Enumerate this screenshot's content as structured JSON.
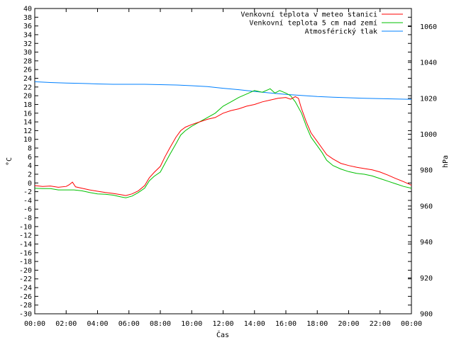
{
  "chart_data": {
    "type": "line",
    "xlabel": "Čas",
    "ylabel_left": "°C",
    "ylabel_right": "hPa",
    "xlim": [
      0,
      24
    ],
    "ylim_left": [
      -30,
      40
    ],
    "ylim_right": [
      900,
      1070
    ],
    "x_ticks": [
      "00:00",
      "02:00",
      "04:00",
      "06:00",
      "08:00",
      "10:00",
      "12:00",
      "14:00",
      "16:00",
      "18:00",
      "20:00",
      "22:00",
      "00:00"
    ],
    "y_ticks_left": [
      40,
      38,
      36,
      34,
      32,
      30,
      28,
      26,
      24,
      22,
      20,
      18,
      16,
      14,
      12,
      10,
      8,
      6,
      4,
      2,
      0,
      -2,
      -4,
      -6,
      -8,
      -10,
      -12,
      -14,
      -16,
      -18,
      -20,
      -22,
      -24,
      -26,
      -28,
      -30
    ],
    "y_ticks_right": [
      1060,
      1040,
      1020,
      1000,
      980,
      960,
      940,
      920,
      900
    ],
    "legend_position": "top-right",
    "grid": false,
    "series": [
      {
        "name": "Venkovní teplota v meteo stanici",
        "color": "#ff0000",
        "axis": "left",
        "x": [
          0,
          0.5,
          1,
          1.5,
          2,
          2.2,
          2.4,
          2.6,
          3,
          3.5,
          4,
          4.5,
          5,
          5.5,
          5.8,
          6.2,
          6.6,
          7,
          7.3,
          7.6,
          8,
          8.3,
          8.6,
          9,
          9.3,
          9.6,
          10,
          10.5,
          11,
          11.5,
          12,
          12.5,
          13,
          13.5,
          14,
          14.5,
          15,
          15.5,
          16,
          16.3,
          16.6,
          16.8,
          17,
          17.3,
          17.6,
          18,
          18.3,
          18.6,
          19,
          19.5,
          20,
          20.5,
          21,
          21.5,
          22,
          22.5,
          23,
          23.5,
          24
        ],
        "y": [
          -0.6,
          -0.8,
          -0.7,
          -1.0,
          -0.8,
          -0.4,
          0.2,
          -0.9,
          -1.2,
          -1.6,
          -1.9,
          -2.2,
          -2.4,
          -2.7,
          -2.9,
          -2.5,
          -1.8,
          -0.6,
          1.2,
          2.4,
          3.8,
          6.0,
          8.0,
          10.5,
          12.0,
          12.8,
          13.4,
          14.0,
          14.6,
          15.0,
          16.0,
          16.6,
          17.0,
          17.6,
          18.0,
          18.6,
          19.0,
          19.4,
          19.6,
          19.2,
          19.8,
          19.4,
          17.0,
          14.0,
          11.5,
          9.5,
          8.0,
          6.5,
          5.5,
          4.5,
          4.0,
          3.6,
          3.3,
          3.0,
          2.5,
          1.8,
          1.0,
          0.3,
          -0.5
        ]
      },
      {
        "name": "Venkovní teplota 5 cm nad zemí",
        "color": "#00c000",
        "axis": "left",
        "x": [
          0,
          0.5,
          1,
          1.5,
          2,
          2.5,
          3,
          3.5,
          4,
          4.5,
          5,
          5.5,
          5.8,
          6.2,
          6.6,
          7,
          7.3,
          7.6,
          8,
          8.3,
          8.6,
          9,
          9.3,
          9.6,
          10,
          10.5,
          11,
          11.5,
          12,
          12.5,
          13,
          13.5,
          14,
          14.5,
          15,
          15.3,
          15.6,
          16,
          16.3,
          16.6,
          17,
          17.3,
          17.6,
          18,
          18.3,
          18.6,
          19,
          19.5,
          20,
          20.5,
          21,
          21.5,
          22,
          22.5,
          23,
          23.5,
          24
        ],
        "y": [
          -1.2,
          -1.3,
          -1.3,
          -1.6,
          -1.6,
          -1.6,
          -1.8,
          -2.2,
          -2.5,
          -2.6,
          -2.8,
          -3.2,
          -3.4,
          -3.0,
          -2.2,
          -1.2,
          0.5,
          1.5,
          2.5,
          4.5,
          6.5,
          9.0,
          11.0,
          12.0,
          13.0,
          14.0,
          15.0,
          16.0,
          17.6,
          18.6,
          19.6,
          20.4,
          21.2,
          20.8,
          21.6,
          20.6,
          21.2,
          20.6,
          20.0,
          18.6,
          16.0,
          13.0,
          10.5,
          8.5,
          7.0,
          5.2,
          4.0,
          3.2,
          2.6,
          2.2,
          2.0,
          1.6,
          1.0,
          0.4,
          -0.2,
          -0.8,
          -1.2
        ]
      },
      {
        "name": "Atmosférický tlak",
        "color": "#0080ff",
        "axis": "right",
        "x": [
          0,
          1,
          2,
          3,
          4,
          5,
          6,
          7,
          8,
          9,
          10,
          11,
          12,
          13,
          14,
          15,
          16,
          17,
          18,
          19,
          20,
          21,
          22,
          23,
          24
        ],
        "y": [
          1029.2,
          1028.8,
          1028.5,
          1028.3,
          1028.0,
          1027.8,
          1027.8,
          1027.8,
          1027.6,
          1027.4,
          1027.0,
          1026.5,
          1025.6,
          1024.8,
          1023.8,
          1023.0,
          1022.2,
          1021.6,
          1021.0,
          1020.6,
          1020.3,
          1020.0,
          1019.8,
          1019.6,
          1019.4
        ]
      }
    ]
  }
}
